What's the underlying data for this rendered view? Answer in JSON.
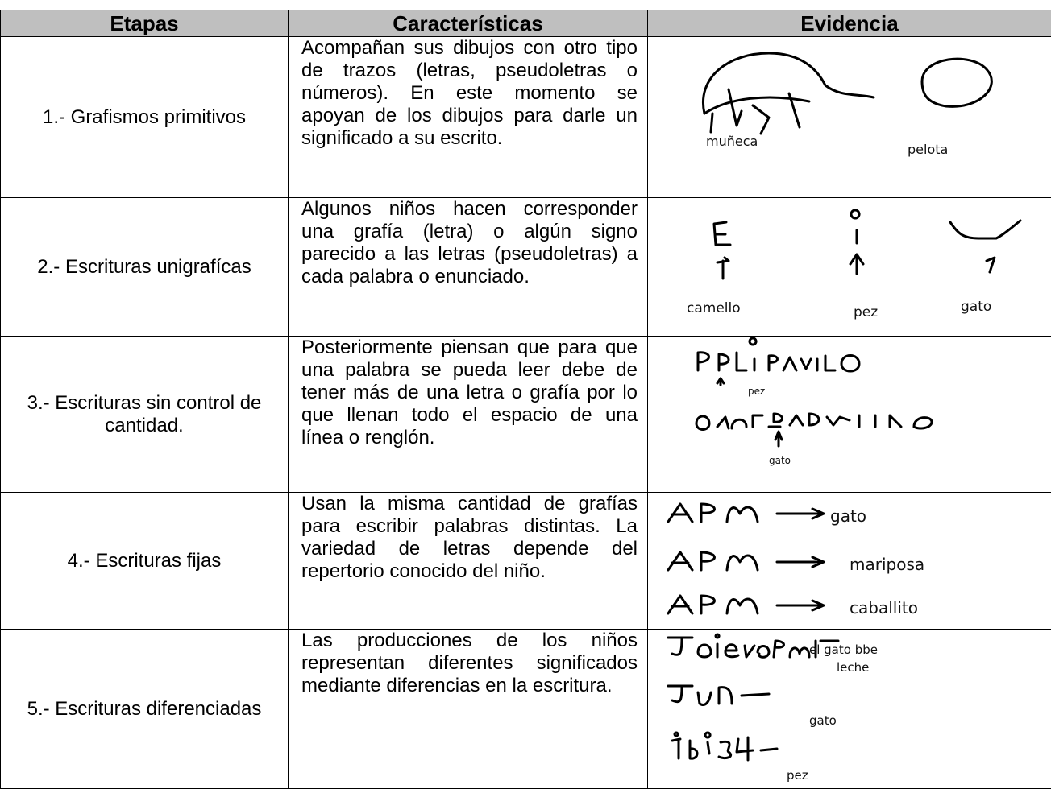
{
  "table": {
    "header": [
      "Etapas",
      "Características",
      "Evidencia"
    ],
    "rows": [
      {
        "stage": "1.- Grafismos primitivos",
        "description": "Acompañan sus dibujos con otro tipo de trazos (letras, pseudoletras o números). En este momento se apoyan de los dibujos para darle un significado a su escrito.",
        "evidence_labels": [
          "muñeca",
          "pelota"
        ]
      },
      {
        "stage": "2.- Escrituras unigrafícas",
        "description": "Algunos niños hacen corresponder una grafía (letra) o algún signo parecido a las letras (pseudoletras) a cada palabra o enunciado.",
        "evidence_labels": [
          "camello",
          "pez",
          "gato"
        ]
      },
      {
        "stage": "3.- Escrituras sin control de cantidad.",
        "description": "Posteriormente piensan que para que una palabra se pueda leer debe de tener más de una letra o grafía por lo que llenan todo el espacio de una línea o renglón.",
        "evidence_labels": [
          "pez",
          "gato"
        ]
      },
      {
        "stage": "4.- Escrituras fijas",
        "description": "Usan la misma cantidad de grafías para escribir palabras distintas. La variedad de letras depende del repertorio conocido del niño.",
        "evidence_labels": [
          "gato",
          "mariposa",
          "caballito"
        ]
      },
      {
        "stage": "5.- Escrituras diferenciadas",
        "description": "Las producciones de los niños representan diferentes significados mediante diferencias en la escritura.",
        "evidence_labels": [
          "el gato bbe",
          "leche",
          "gato",
          "pez"
        ]
      }
    ]
  }
}
